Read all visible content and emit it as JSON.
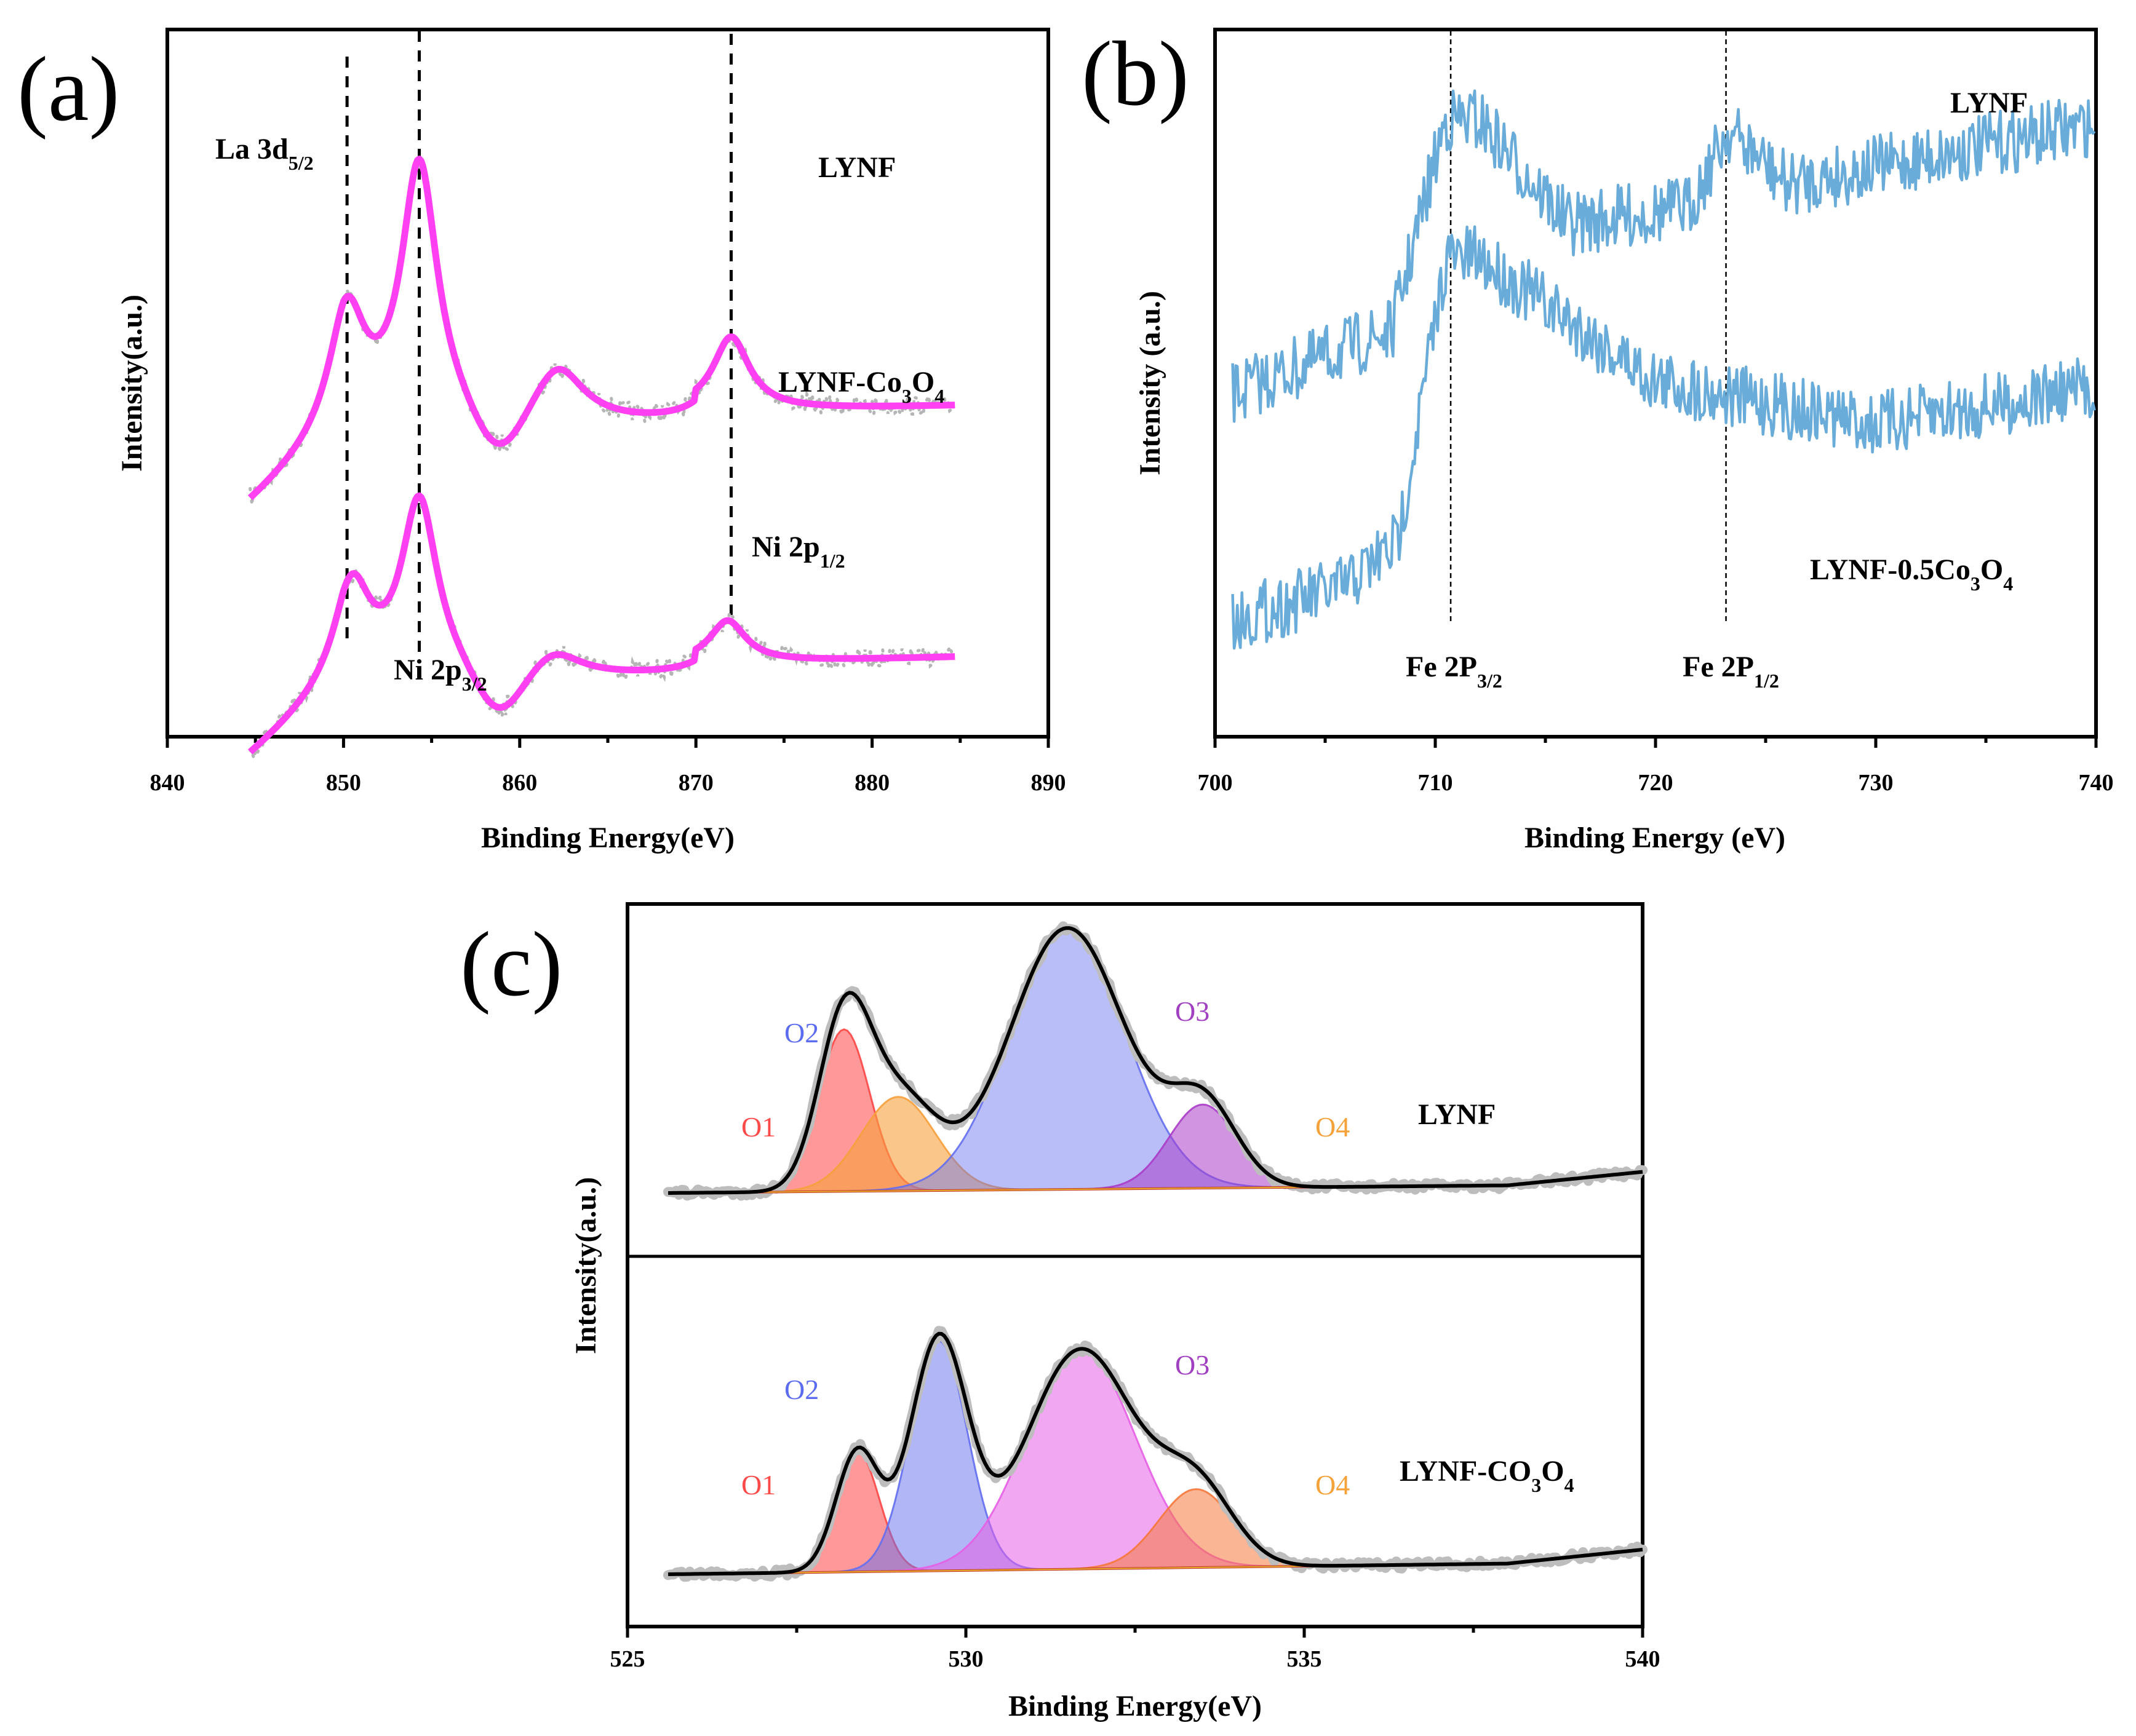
{
  "colors": {
    "fit_curve": "#ff3ff2",
    "raw_points": "#b5b5b5",
    "fe_line": "#69acd9",
    "O1": "#ff4a4a",
    "O2_lynf": "#5c6cf0",
    "O2_co3o4": "#5c6cf0",
    "O3_lynf": "#a040c0",
    "O3_co3o4": "#e05fe0",
    "O4": "#f6a23a",
    "envelope": "#000000",
    "background": "#c0392b"
  },
  "chart_data": [
    {
      "id": "a",
      "type": "line",
      "panel_label": "(a)",
      "xlabel": "Binding Energy(eV)",
      "ylabel": "Intensity(a.u.)",
      "xlim": [
        840,
        890
      ],
      "xticks": [
        "840",
        "850",
        "860",
        "870",
        "880",
        "890"
      ],
      "series": [
        {
          "name": "LYNF",
          "label": "LYNF",
          "x_range": [
            844.7,
            884.7
          ],
          "offset": 1.0,
          "peaks": [
            {
              "x": 850.2,
              "height": 0.55
            },
            {
              "x": 854.3,
              "height": 1.25
            },
            {
              "x": 862.2,
              "height": 0.25
            },
            {
              "x": 872.0,
              "height": 0.35
            }
          ]
        },
        {
          "name": "LYNF-Co3O4",
          "label_main": "LYNF-Co",
          "label_sub1": "3",
          "label_mid": "O",
          "label_sub2": "4",
          "x_range": [
            844.7,
            884.7
          ],
          "offset": 0.0,
          "peaks": [
            {
              "x": 850.5,
              "height": 0.45
            },
            {
              "x": 854.3,
              "height": 0.85
            },
            {
              "x": 862.0,
              "height": 0.1
            },
            {
              "x": 871.8,
              "height": 0.2
            }
          ]
        }
      ],
      "reference_lines": [
        {
          "x": 850.2,
          "main": "La 3d",
          "sub": "5/2"
        },
        {
          "x": 854.3,
          "main": "Ni 2p",
          "sub": "3/2"
        },
        {
          "x": 872.0,
          "main": "Ni 2p",
          "sub": "1/2"
        }
      ]
    },
    {
      "id": "b",
      "type": "line",
      "panel_label": "(b)",
      "xlabel": "Binding Energy (eV)",
      "ylabel": "Intensity (a.u.)",
      "xlim": [
        700,
        740
      ],
      "xticks": [
        "700",
        "710",
        "720",
        "730",
        "740"
      ],
      "series": [
        {
          "name": "LYNF",
          "label": "LYNF",
          "x_range": [
            700.8,
            740
          ]
        },
        {
          "name": "LYNF-0.5Co3O4",
          "label_main": "LYNF-0.5Co",
          "label_sub1": "3",
          "label_mid": "O",
          "label_sub2": "4",
          "x_range": [
            700.8,
            740
          ]
        }
      ],
      "reference_lines": [
        {
          "x": 710.7,
          "main": "Fe 2P",
          "sub": "3/2"
        },
        {
          "x": 723.2,
          "main": "Fe 2P",
          "sub": "1/2"
        }
      ]
    },
    {
      "id": "c",
      "type": "area",
      "panel_label": "(c)",
      "xlabel": "Binding Energy(eV)",
      "ylabel": "Intensity(a.u.)",
      "xlim": [
        525,
        540
      ],
      "xticks": [
        "525",
        "530",
        "535",
        "540"
      ],
      "subplots": [
        {
          "name": "LYNF",
          "label": "LYNF",
          "components": [
            {
              "name": "O1",
              "center": 528.2,
              "height": 0.62,
              "sigma": 0.38,
              "color_key": "O1"
            },
            {
              "name": "O4",
              "center": 529.0,
              "height": 0.36,
              "sigma": 0.55,
              "color_key": "O4"
            },
            {
              "name": "O2",
              "center": 531.5,
              "height": 1.0,
              "sigma": 0.85,
              "color_key": "O2_lynf"
            },
            {
              "name": "O3",
              "center": 533.5,
              "height": 0.32,
              "sigma": 0.5,
              "color_key": "O3_lynf"
            }
          ],
          "labels": [
            {
              "text": "O1",
              "x": 527.2,
              "color_key": "O1"
            },
            {
              "text": "O2",
              "x": 527.6,
              "color_key": "O2_lynf"
            },
            {
              "text": "O3",
              "x": 534.0,
              "color_key": "O3_lynf"
            },
            {
              "text": "O4",
              "x": 535.5,
              "color_key": "O4"
            }
          ]
        },
        {
          "name": "LYNF-CO3O4",
          "label_main": "LYNF-CO",
          "label_sub1": "3",
          "label_mid": "O",
          "label_sub2": "4",
          "components": [
            {
              "name": "O1",
              "center": 528.4,
              "height": 0.46,
              "sigma": 0.32,
              "color_key": "O1"
            },
            {
              "name": "O2",
              "center": 529.6,
              "height": 0.88,
              "sigma": 0.42,
              "color_key": "O2_co3o4"
            },
            {
              "name": "O3",
              "center": 531.7,
              "height": 0.84,
              "sigma": 0.8,
              "color_key": "O3_co3o4"
            },
            {
              "name": "O4",
              "center": 533.4,
              "height": 0.3,
              "sigma": 0.55,
              "color_key": "O4"
            }
          ],
          "labels": [
            {
              "text": "O1",
              "x": 527.2,
              "color_key": "O1"
            },
            {
              "text": "O2",
              "x": 527.6,
              "color_key": "O2_co3o4"
            },
            {
              "text": "O3",
              "x": 534.0,
              "color_key": "O3_lynf"
            },
            {
              "text": "O4",
              "x": 535.5,
              "color_key": "O4"
            }
          ]
        }
      ]
    }
  ]
}
